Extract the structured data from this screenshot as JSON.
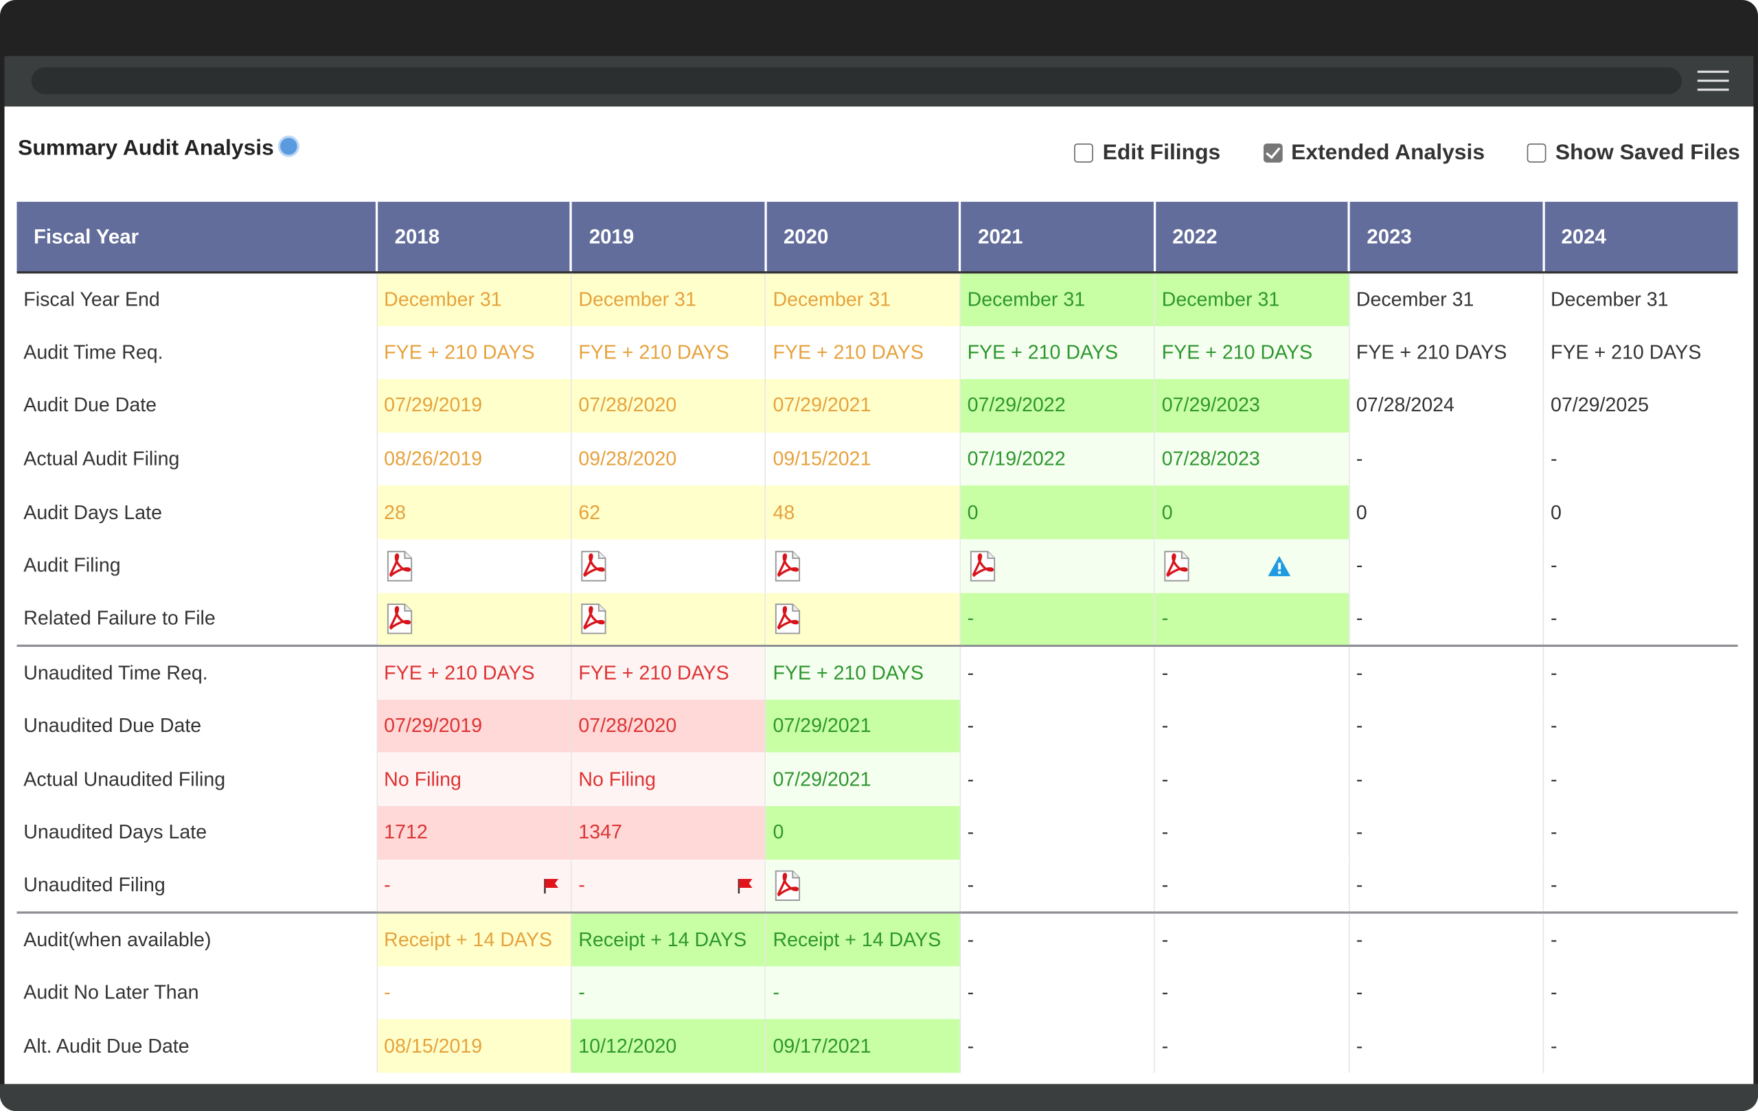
{
  "header": {
    "title": "Summary Audit Analysis",
    "checkboxes": [
      {
        "label": "Edit Filings",
        "checked": false
      },
      {
        "label": "Extended Analysis",
        "checked": true
      },
      {
        "label": "Show Saved Files",
        "checked": false
      }
    ]
  },
  "table": {
    "columns": [
      "Fiscal Year",
      "2018",
      "2019",
      "2020",
      "2021",
      "2022",
      "2023",
      "2024"
    ],
    "sections": [
      [
        {
          "label": "Fiscal Year End",
          "cells": [
            {
              "text": "December 31",
              "tone": "yellow"
            },
            {
              "text": "December 31",
              "tone": "yellow"
            },
            {
              "text": "December 31",
              "tone": "yellow"
            },
            {
              "text": "December 31",
              "tone": "green"
            },
            {
              "text": "December 31",
              "tone": "green"
            },
            {
              "text": "December 31",
              "tone": "none"
            },
            {
              "text": "December 31",
              "tone": "none"
            }
          ]
        },
        {
          "label": "Audit Time Req.",
          "cells": [
            {
              "text": "FYE + 210 DAYS",
              "tone": "yellow"
            },
            {
              "text": "FYE + 210 DAYS",
              "tone": "yellow"
            },
            {
              "text": "FYE + 210 DAYS",
              "tone": "yellow"
            },
            {
              "text": "FYE + 210 DAYS",
              "tone": "green"
            },
            {
              "text": "FYE + 210 DAYS",
              "tone": "green"
            },
            {
              "text": "FYE + 210 DAYS",
              "tone": "none"
            },
            {
              "text": "FYE + 210 DAYS",
              "tone": "none"
            }
          ]
        },
        {
          "label": "Audit Due Date",
          "cells": [
            {
              "text": "07/29/2019",
              "tone": "yellow"
            },
            {
              "text": "07/28/2020",
              "tone": "yellow"
            },
            {
              "text": "07/29/2021",
              "tone": "yellow"
            },
            {
              "text": "07/29/2022",
              "tone": "green"
            },
            {
              "text": "07/29/2023",
              "tone": "green"
            },
            {
              "text": "07/28/2024",
              "tone": "none"
            },
            {
              "text": "07/29/2025",
              "tone": "none"
            }
          ]
        },
        {
          "label": "Actual Audit Filing",
          "cells": [
            {
              "text": "08/26/2019",
              "tone": "yellow"
            },
            {
              "text": "09/28/2020",
              "tone": "yellow"
            },
            {
              "text": "09/15/2021",
              "tone": "yellow"
            },
            {
              "text": "07/19/2022",
              "tone": "green"
            },
            {
              "text": "07/28/2023",
              "tone": "green"
            },
            {
              "text": "-",
              "tone": "none"
            },
            {
              "text": "-",
              "tone": "none"
            }
          ]
        },
        {
          "label": "Audit Days Late",
          "cells": [
            {
              "text": 28,
              "tone": "yellow"
            },
            {
              "text": 62,
              "tone": "yellow"
            },
            {
              "text": 48,
              "tone": "yellow"
            },
            {
              "text": 0,
              "tone": "green"
            },
            {
              "text": 0,
              "tone": "green"
            },
            {
              "text": 0,
              "tone": "none"
            },
            {
              "text": 0,
              "tone": "none"
            }
          ]
        },
        {
          "label": "Audit Filing",
          "cells": [
            {
              "tone": "yellow",
              "icons": [
                "pdf"
              ]
            },
            {
              "tone": "yellow",
              "icons": [
                "pdf"
              ]
            },
            {
              "tone": "yellow",
              "icons": [
                "pdf"
              ]
            },
            {
              "tone": "green",
              "icons": [
                "pdf"
              ]
            },
            {
              "tone": "green",
              "icons": [
                "pdf",
                "warning"
              ]
            },
            {
              "text": "-",
              "tone": "none"
            },
            {
              "text": "-",
              "tone": "none"
            }
          ]
        },
        {
          "label": "Related Failure to File",
          "cells": [
            {
              "tone": "yellow",
              "icons": [
                "pdf"
              ]
            },
            {
              "tone": "yellow",
              "icons": [
                "pdf"
              ]
            },
            {
              "tone": "yellow",
              "icons": [
                "pdf"
              ]
            },
            {
              "text": "-",
              "tone": "green"
            },
            {
              "text": "-",
              "tone": "green"
            },
            {
              "text": "-",
              "tone": "none"
            },
            {
              "text": "-",
              "tone": "none"
            }
          ]
        }
      ],
      [
        {
          "label": "Unaudited Time Req.",
          "cells": [
            {
              "text": "FYE + 210 DAYS",
              "tone": "red"
            },
            {
              "text": "FYE + 210 DAYS",
              "tone": "red"
            },
            {
              "text": "FYE + 210 DAYS",
              "tone": "green"
            },
            {
              "text": "-",
              "tone": "none"
            },
            {
              "text": "-",
              "tone": "none"
            },
            {
              "text": "-",
              "tone": "none"
            },
            {
              "text": "-",
              "tone": "none"
            }
          ]
        },
        {
          "label": "Unaudited Due Date",
          "cells": [
            {
              "text": "07/29/2019",
              "tone": "red"
            },
            {
              "text": "07/28/2020",
              "tone": "red"
            },
            {
              "text": "07/29/2021",
              "tone": "green"
            },
            {
              "text": "-",
              "tone": "none"
            },
            {
              "text": "-",
              "tone": "none"
            },
            {
              "text": "-",
              "tone": "none"
            },
            {
              "text": "-",
              "tone": "none"
            }
          ]
        },
        {
          "label": "Actual Unaudited Filing",
          "cells": [
            {
              "text": "No Filing",
              "tone": "red"
            },
            {
              "text": "No Filing",
              "tone": "red"
            },
            {
              "text": "07/29/2021",
              "tone": "green"
            },
            {
              "text": "-",
              "tone": "none"
            },
            {
              "text": "-",
              "tone": "none"
            },
            {
              "text": "-",
              "tone": "none"
            },
            {
              "text": "-",
              "tone": "none"
            }
          ]
        },
        {
          "label": "Unaudited Days Late",
          "cells": [
            {
              "text": 1712,
              "tone": "red"
            },
            {
              "text": 1347,
              "tone": "red"
            },
            {
              "text": 0,
              "tone": "green"
            },
            {
              "text": "-",
              "tone": "none"
            },
            {
              "text": "-",
              "tone": "none"
            },
            {
              "text": "-",
              "tone": "none"
            },
            {
              "text": "-",
              "tone": "none"
            }
          ]
        },
        {
          "label": "Unaudited Filing",
          "cells": [
            {
              "text": "-",
              "tone": "red",
              "icons": [
                "flag"
              ]
            },
            {
              "text": "-",
              "tone": "red",
              "icons": [
                "flag"
              ]
            },
            {
              "tone": "green",
              "icons": [
                "pdf"
              ]
            },
            {
              "text": "-",
              "tone": "none"
            },
            {
              "text": "-",
              "tone": "none"
            },
            {
              "text": "-",
              "tone": "none"
            },
            {
              "text": "-",
              "tone": "none"
            }
          ]
        }
      ],
      [
        {
          "label": "Audit(when available)",
          "cells": [
            {
              "text": "Receipt + 14 DAYS",
              "tone": "yellow"
            },
            {
              "text": "Receipt + 14 DAYS",
              "tone": "green"
            },
            {
              "text": "Receipt + 14 DAYS",
              "tone": "green"
            },
            {
              "text": "-",
              "tone": "none"
            },
            {
              "text": "-",
              "tone": "none"
            },
            {
              "text": "-",
              "tone": "none"
            },
            {
              "text": "-",
              "tone": "none"
            }
          ]
        },
        {
          "label": "Audit No Later Than",
          "cells": [
            {
              "text": "-",
              "tone": "yellow"
            },
            {
              "text": "-",
              "tone": "green"
            },
            {
              "text": "-",
              "tone": "green"
            },
            {
              "text": "-",
              "tone": "none"
            },
            {
              "text": "-",
              "tone": "none"
            },
            {
              "text": "-",
              "tone": "none"
            },
            {
              "text": "-",
              "tone": "none"
            }
          ]
        },
        {
          "label": "Alt. Audit Due Date",
          "cells": [
            {
              "text": "08/15/2019",
              "tone": "yellow"
            },
            {
              "text": "10/12/2020",
              "tone": "green"
            },
            {
              "text": "09/17/2021",
              "tone": "green"
            },
            {
              "text": "-",
              "tone": "none"
            },
            {
              "text": "-",
              "tone": "none"
            },
            {
              "text": "-",
              "tone": "none"
            },
            {
              "text": "-",
              "tone": "none"
            }
          ]
        }
      ]
    ]
  }
}
